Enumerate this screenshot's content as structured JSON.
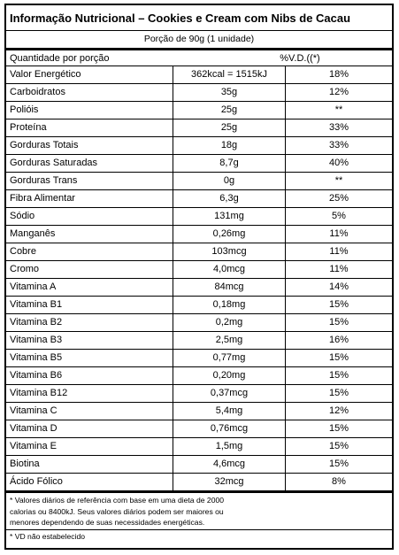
{
  "title": "Informação Nutricional – Cookies e Cream com Nibs de Cacau",
  "portion": "Porção de 90g (1 unidade)",
  "header": {
    "quantity_label": "Quantidade por porção",
    "dv_label": "%V.D.((*)"
  },
  "rows": [
    {
      "name": "Valor Energético",
      "qty": "362kcal = 1515kJ",
      "pct": "18%"
    },
    {
      "name": "Carboidratos",
      "qty": "35g",
      "pct": "12%"
    },
    {
      "name": "Polióis",
      "qty": "25g",
      "pct": "**"
    },
    {
      "name": "Proteína",
      "qty": "25g",
      "pct": "33%"
    },
    {
      "name": "Gorduras Totais",
      "qty": "18g",
      "pct": "33%"
    },
    {
      "name": "Gorduras Saturadas",
      "qty": "8,7g",
      "pct": "40%"
    },
    {
      "name": "Gorduras Trans",
      "qty": "0g",
      "pct": "**"
    },
    {
      "name": "Fibra Alimentar",
      "qty": "6,3g",
      "pct": "25%"
    },
    {
      "name": "Sódio",
      "qty": "131mg",
      "pct": "5%"
    },
    {
      "name": "Manganês",
      "qty": "0,26mg",
      "pct": "11%"
    },
    {
      "name": "Cobre",
      "qty": "103mcg",
      "pct": "11%"
    },
    {
      "name": "Cromo",
      "qty": "4,0mcg",
      "pct": "11%"
    },
    {
      "name": "Vitamina A",
      "qty": "84mcg",
      "pct": "14%"
    },
    {
      "name": "Vitamina B1",
      "qty": "0,18mg",
      "pct": "15%"
    },
    {
      "name": "Vitamina B2",
      "qty": "0,2mg",
      "pct": "15%"
    },
    {
      "name": "Vitamina B3",
      "qty": "2,5mg",
      "pct": "16%"
    },
    {
      "name": "Vitamina B5",
      "qty": "0,77mg",
      "pct": "15%"
    },
    {
      "name": "Vitamina B6",
      "qty": "0,20mg",
      "pct": "15%"
    },
    {
      "name": "Vitamina B12",
      "qty": "0,37mcg",
      "pct": "15%"
    },
    {
      "name": "Vitamina C",
      "qty": "5,4mg",
      "pct": "12%"
    },
    {
      "name": "Vitamina D",
      "qty": "0,76mcg",
      "pct": "15%"
    },
    {
      "name": "Vitamina E",
      "qty": "1,5mg",
      "pct": "15%"
    },
    {
      "name": "Biotina",
      "qty": "4,6mcg",
      "pct": "15%"
    },
    {
      "name": "Ácido Fólico",
      "qty": "32mcg",
      "pct": "8%"
    }
  ],
  "footnote_1_line_1": "* Valores diários de referência com base em uma dieta de 2000",
  "footnote_1_line_2": "calorias ou 8400kJ. Seus valores diários podem ser maiores ou",
  "footnote_1_line_3": "menores dependendo de suas necessidades energéticas.",
  "footnote_2": "* VD não estabelecido"
}
